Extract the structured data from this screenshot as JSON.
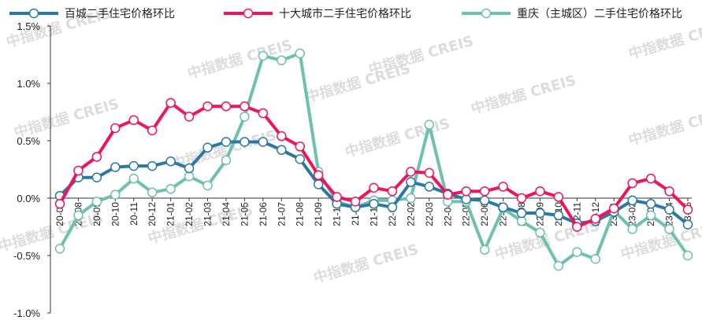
{
  "chart_data": {
    "type": "line",
    "ylim": [
      -1.0,
      1.5
    ],
    "yticks": [
      "-1.0%",
      "-0.5%",
      "0.0%",
      "0.5%",
      "1.0%",
      "1.5%"
    ],
    "legend_position": "top",
    "categories": [
      "20-07",
      "20-08",
      "20-09",
      "20-10",
      "20-11",
      "20-12",
      "21-01",
      "21-02",
      "21-03",
      "21-04",
      "21-05",
      "21-06",
      "21-07",
      "21-08",
      "21-09",
      "21-10",
      "21-11",
      "21-12",
      "22-01",
      "22-02",
      "22-03",
      "22-04",
      "22-05",
      "22-06",
      "22-07",
      "22-08",
      "22-09",
      "22-10",
      "22-11",
      "22-12",
      "23-01",
      "23-02",
      "23-03",
      "23-04",
      "23-05"
    ],
    "series": [
      {
        "name": "百城二手住宅价格环比",
        "color": "#2a78a4",
        "values": [
          0.02,
          0.18,
          0.18,
          0.27,
          0.28,
          0.28,
          0.32,
          0.26,
          0.44,
          0.49,
          0.49,
          0.49,
          0.42,
          0.34,
          0.12,
          -0.05,
          -0.08,
          -0.05,
          -0.08,
          0.14,
          0.1,
          0.04,
          -0.01,
          -0.02,
          -0.08,
          -0.13,
          -0.13,
          -0.15,
          -0.22,
          -0.2,
          -0.12,
          -0.02,
          -0.05,
          -0.1,
          -0.23
        ]
      },
      {
        "name": "十大城市二手住宅价格环比",
        "color": "#f0145a",
        "values": [
          -0.05,
          0.24,
          0.36,
          0.61,
          0.68,
          0.59,
          0.83,
          0.71,
          0.8,
          0.8,
          0.8,
          0.74,
          0.54,
          0.45,
          0.2,
          0.01,
          -0.03,
          0.09,
          0.06,
          0.23,
          0.22,
          0.03,
          0.06,
          0.06,
          0.1,
          0.0,
          0.06,
          0.01,
          -0.25,
          -0.18,
          -0.09,
          0.13,
          0.17,
          0.06,
          -0.1
        ]
      },
      {
        "name": "重庆（主城区）二手住宅价格环比",
        "color": "#6dc1ae",
        "values": [
          -0.44,
          -0.15,
          -0.03,
          0.03,
          0.17,
          0.05,
          0.08,
          0.19,
          0.11,
          0.33,
          0.71,
          1.24,
          1.2,
          1.26,
          0.23,
          -0.03,
          -0.08,
          -0.02,
          -0.02,
          0.0,
          0.64,
          -0.03,
          -0.03,
          -0.45,
          -0.09,
          -0.2,
          -0.3,
          -0.59,
          -0.47,
          -0.53,
          -0.11,
          -0.27,
          -0.15,
          -0.27,
          -0.5
        ]
      }
    ],
    "watermark": "中指数据 CREIS"
  }
}
